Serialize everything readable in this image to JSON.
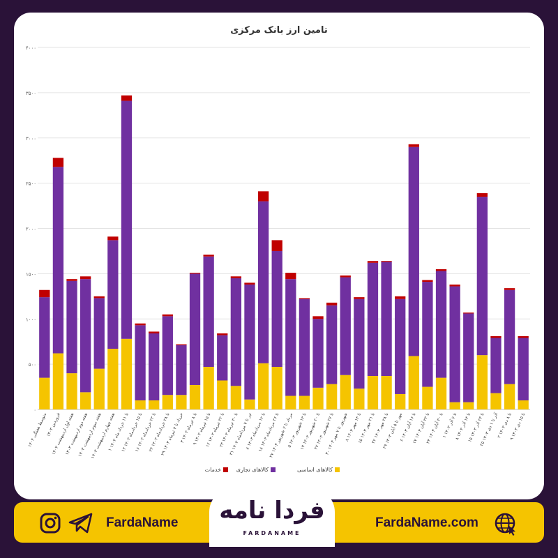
{
  "chart_data": {
    "type": "bar",
    "stacked": true,
    "title": "تامین ارز بانک مرکزی",
    "ylim": [
      0,
      4000
    ],
    "yticks": [
      "۰",
      "۵۰۰",
      "۱۰۰۰",
      "۱۵۰۰",
      "۲۰۰۰",
      "۲۵۰۰",
      "۳۰۰۰",
      "۳۵۰۰",
      "۴۰۰۰"
    ],
    "ytick_values": [
      0,
      500,
      1000,
      1500,
      2000,
      2500,
      3000,
      3500,
      4000
    ],
    "grid": true,
    "legend_position": "bottom",
    "categories": [
      "متوسط هفتگی ۱۴۰۲",
      "فروردین ۱۴۰۳",
      "هفته اول اردیبهشت ۱۴۰۳",
      "هفته دوم اردیبهشت ۱۴۰۳",
      "هفته سوم اردیبهشت ۱۴۰۳",
      "هفته چهارم اردیبهشت ۱۴۰۳",
      "۱ تا ۱۱ خرداد ماه ۱۴۰۳",
      "۱۲ تا ۱۵ خردادماه ۱۴۰۳",
      "۱۶ تا ۲۲ خردادماه ۱۴۰۳",
      "۲۳ تا ۲۸ خردادماه ۱۴۰۳",
      "۲۹ خرداد تا ۴ تیرماه ۱۴۰۳",
      "۳ تا ۸ تیرماه ۱۴۰۳",
      "۹ تا ۱۵ تیرماه ۱۴۰۳",
      "۱۶ تا ۲۲ تیرماه ۱۴۰۳",
      "۲۳ تا ۳۰ تیرماه ۱۴۰۳",
      "۳۱ تیر تا ۷ مردادماه ۱۴۰۳",
      "۸ تا ۱۲ مردادماه ۱۴۰۳",
      "۱۸ تا ۲۶ مردادماه ۱۴۰۳",
      "۲۷ مرداد تا ۲ شهریور ۱۴۰۳",
      "۵ تا ۱۳ شهریور ۱۴۰۳",
      "۱۴ تا ۲۰ شهریور ۱۴۰۳",
      "۲۷ تا ۲۷ شهریور ۱۴۰۳",
      "۳۰ شهریور تا ۷ مهر ۱۴۰۳",
      "۸ تا ۱۴ مهر ۱۴۰۳",
      "۱۵ تا ۲۱ مهر ۱۴۰۳",
      "۲۲ تا ۲۸ مهر ۱۴۰۳",
      "۲۹ مهر تا ۵ آبان ۱۴۰۳",
      "۶ تا ۱۶ آبان ۱۴۰۳",
      "۱۷ تا ۲۳ آبان ۱۴۰۳",
      "۲۴ تا ۳۰ آبان ۱۴۰۳",
      "۱ تا ۷ آذر ۱۴۰۳",
      "۸ تا ۱۴ آذر ۱۴۰۳",
      "۱۵ تا ۲۴ آذر ۱۴۰۳",
      "۲۵ آذر تا ۱ دی ۱۴۰۳",
      "۲ تا ۸ دی ۱۴۰۳",
      "۹ تا ۱۵ دی ۱۴۰۳"
    ],
    "series": [
      {
        "name": "کالاهای اساسی",
        "color": "#f5c400",
        "values": [
          350,
          620,
          400,
          190,
          450,
          670,
          780,
          100,
          100,
          160,
          160,
          270,
          470,
          320,
          260,
          110,
          510,
          470,
          150,
          150,
          240,
          280,
          380,
          230,
          370,
          370,
          170,
          590,
          250,
          350,
          80,
          80,
          600,
          180,
          280,
          100
        ]
      },
      {
        "name": "کالاهای تجاری",
        "color": "#7030a0",
        "values": [
          890,
          2060,
          1020,
          1250,
          780,
          1200,
          2630,
          830,
          740,
          870,
          550,
          1230,
          1220,
          500,
          1190,
          1270,
          1790,
          1280,
          1290,
          1070,
          760,
          870,
          1080,
          990,
          1250,
          1260,
          1050,
          2310,
          1160,
          1180,
          1280,
          980,
          1750,
          610,
          1040,
          690
        ]
      },
      {
        "name": "خدمات",
        "color": "#c00000",
        "values": [
          80,
          100,
          20,
          30,
          20,
          40,
          60,
          20,
          20,
          20,
          10,
          10,
          20,
          20,
          20,
          20,
          110,
          120,
          70,
          10,
          30,
          30,
          20,
          20,
          20,
          10,
          30,
          30,
          20,
          20,
          20,
          10,
          40,
          20,
          20,
          20
        ]
      }
    ]
  },
  "footer": {
    "site": "FardaName.com",
    "brand": "FardaName",
    "logo_text": "فردا نامه",
    "logo_subtext": "FARDANAME"
  },
  "icons": {
    "globe": "globe-icon",
    "telegram": "telegram-icon",
    "instagram": "instagram-icon"
  }
}
